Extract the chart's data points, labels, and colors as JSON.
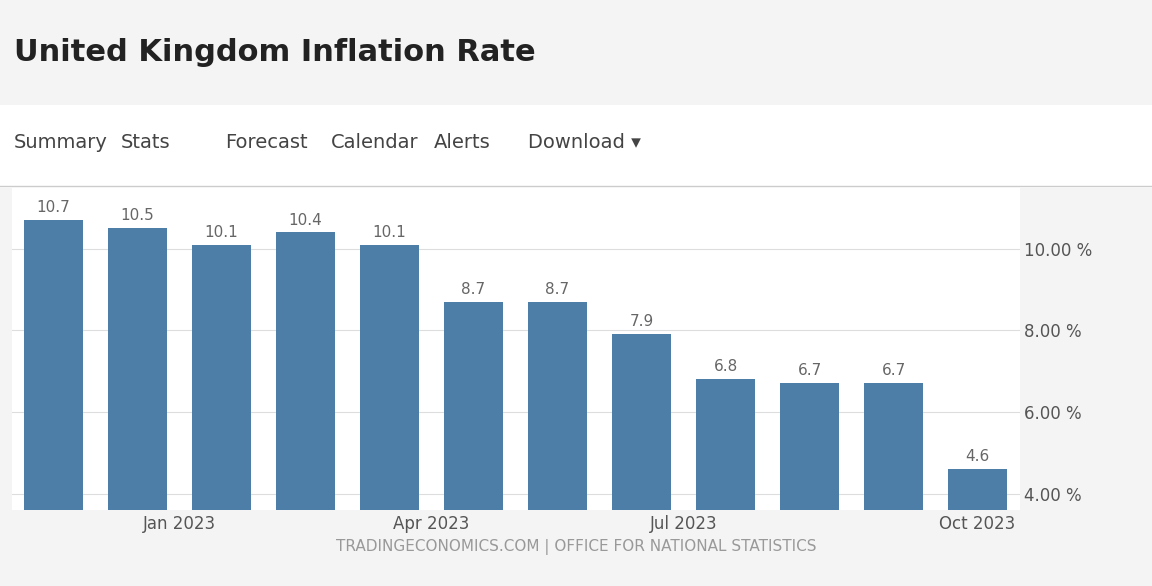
{
  "title": "United Kingdom Inflation Rate",
  "nav_items": [
    "Summary",
    "Stats",
    "Forecast",
    "Calendar",
    "Alerts",
    "Download ▾"
  ],
  "x_tick_labels": [
    "Jan 2023",
    "Apr 2023",
    "Jul 2023",
    "Oct 2023"
  ],
  "x_tick_positions": [
    1.5,
    4.5,
    7.5,
    11
  ],
  "values": [
    10.7,
    10.5,
    10.1,
    10.4,
    10.1,
    8.7,
    8.7,
    7.9,
    6.8,
    6.7,
    6.7,
    4.6
  ],
  "bar_color": "#4d7ea8",
  "background_color": "#f4f4f4",
  "plot_bg_color": "#ffffff",
  "nav_bg_color": "#ffffff",
  "y_ticks": [
    4.0,
    6.0,
    8.0,
    10.0
  ],
  "y_tick_labels": [
    "4.00 %",
    "6.00 %",
    "8.00 %",
    "10.00 %"
  ],
  "ylim": [
    3.6,
    11.5
  ],
  "footer_text": "TRADINGECONOMICS.COM | OFFICE FOR NATIONAL STATISTICS",
  "title_fontsize": 22,
  "nav_fontsize": 14,
  "bar_label_fontsize": 11,
  "tick_fontsize": 12,
  "footer_fontsize": 11
}
